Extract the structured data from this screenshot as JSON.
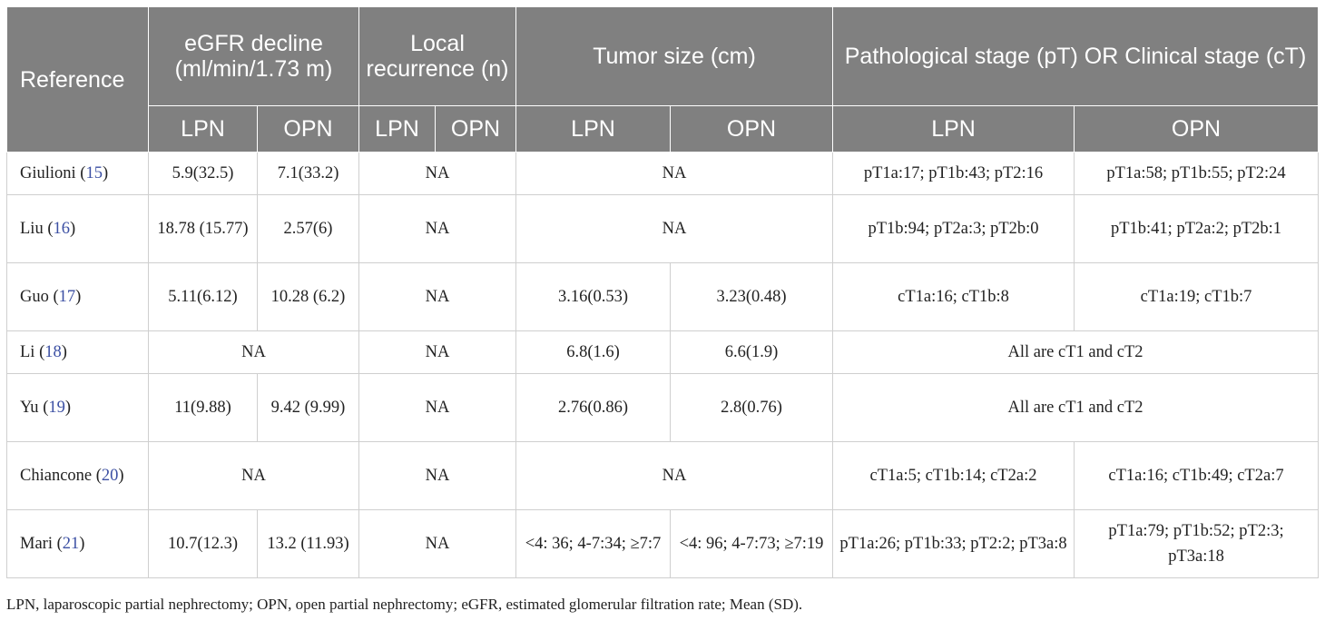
{
  "table": {
    "headers": {
      "reference": "Reference",
      "egfr": "eGFR decline (ml/min/1.73 m)",
      "local": "Local recurrence (n)",
      "tumor": "Tumor size (cm)",
      "stage": "Pathological stage (pT) OR Clinical stage (cT)"
    },
    "subheaders": [
      "LPN",
      "OPN",
      "LPN",
      "OPN",
      "LPN",
      "OPN",
      "LPN",
      "OPN"
    ],
    "rows": [
      {
        "name": "Giulioni",
        "cite": "15",
        "egfr_lpn": "5.9(32.5)",
        "egfr_opn": "7.1(33.2)",
        "local": "NA",
        "tumor": "NA",
        "stage_lpn": "pT1a:17; pT1b:43; pT2:16",
        "stage_opn": "pT1a:58; pT1b:55; pT2:24"
      },
      {
        "name": "Liu",
        "cite": "16",
        "egfr_lpn": "18.78 (15.77)",
        "egfr_opn": "2.57(6)",
        "local": "NA",
        "tumor": "NA",
        "stage_lpn": "pT1b:94; pT2a:3; pT2b:0",
        "stage_opn": "pT1b:41; pT2a:2; pT2b:1"
      },
      {
        "name": "Guo",
        "cite": "17",
        "egfr_lpn": "5.11(6.12)",
        "egfr_opn": "10.28 (6.2)",
        "local": "NA",
        "tumor_lpn": "3.16(0.53)",
        "tumor_opn": "3.23(0.48)",
        "stage_lpn": "cT1a:16; cT1b:8",
        "stage_opn": "cT1a:19; cT1b:7"
      },
      {
        "name": "Li",
        "cite": "18",
        "egfr": "NA",
        "local": "NA",
        "tumor_lpn": "6.8(1.6)",
        "tumor_opn": "6.6(1.9)",
        "stage": "All are cT1 and cT2"
      },
      {
        "name": "Yu",
        "cite": "19",
        "egfr_lpn": "11(9.88)",
        "egfr_opn": "9.42 (9.99)",
        "local": "NA",
        "tumor_lpn": "2.76(0.86)",
        "tumor_opn": "2.8(0.76)",
        "stage": "All are cT1 and cT2"
      },
      {
        "name": "Chiancone",
        "cite": "20",
        "egfr": "NA",
        "local": "NA",
        "tumor": "NA",
        "stage_lpn": "cT1a:5; cT1b:14; cT2a:2",
        "stage_opn": "cT1a:16; cT1b:49; cT2a:7"
      },
      {
        "name": "Mari",
        "cite": "21",
        "egfr_lpn": "10.7(12.3)",
        "egfr_opn": "13.2 (11.93)",
        "local": "NA",
        "tumor_lpn": "<4: 36; 4-7:34; ≥7:7",
        "tumor_opn": "<4: 96; 4-7:73; ≥7:19",
        "stage_lpn": "pT1a:26; pT1b:33; pT2:2; pT3a:8",
        "stage_opn": "pT1a:79; pT1b:52; pT2:3; pT3a:18"
      }
    ]
  },
  "footnote": "LPN, laparoscopic partial nephrectomy; OPN, open partial nephrectomy; eGFR, estimated glomerular filtration rate; Mean (SD)."
}
